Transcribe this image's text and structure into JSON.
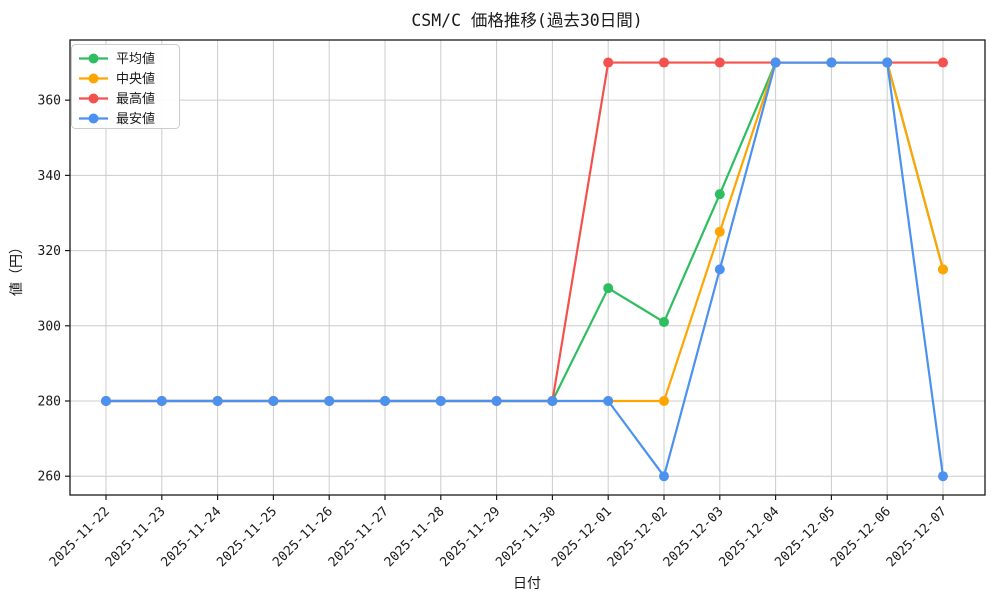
{
  "chart_data": {
    "type": "line",
    "title": "CSM/C 価格推移(過去30日間)",
    "xlabel": "日付",
    "ylabel": "値（円）",
    "x": [
      "2025-11-22",
      "2025-11-23",
      "2025-11-24",
      "2025-11-25",
      "2025-11-26",
      "2025-11-27",
      "2025-11-28",
      "2025-11-29",
      "2025-11-30",
      "2025-12-01",
      "2025-12-02",
      "2025-12-03",
      "2025-12-04",
      "2025-12-05",
      "2025-12-06",
      "2025-12-07"
    ],
    "series": [
      {
        "key": "mean",
        "name": "平均値",
        "color": "#2dbe60",
        "values": [
          280,
          280,
          280,
          280,
          280,
          280,
          280,
          280,
          280,
          310,
          301,
          335,
          370,
          370,
          370,
          315
        ]
      },
      {
        "key": "median",
        "name": "中央値",
        "color": "#ffa502",
        "values": [
          280,
          280,
          280,
          280,
          280,
          280,
          280,
          280,
          280,
          280,
          280,
          325,
          370,
          370,
          370,
          315
        ]
      },
      {
        "key": "max",
        "name": "最高値",
        "color": "#f4514d",
        "values": [
          280,
          280,
          280,
          280,
          280,
          280,
          280,
          280,
          280,
          370,
          370,
          370,
          370,
          370,
          370,
          370
        ]
      },
      {
        "key": "min",
        "name": "最安値",
        "color": "#4b92f0",
        "values": [
          280,
          280,
          280,
          280,
          280,
          280,
          280,
          280,
          280,
          280,
          260,
          315,
          370,
          370,
          370,
          260
        ]
      }
    ],
    "yticks": [
      260,
      280,
      300,
      320,
      340,
      360
    ],
    "ylim": [
      255,
      376
    ],
    "grid": true,
    "legend_position": "upper left",
    "grid_color": "#cccccc",
    "spine_color": "#1a1a1a",
    "background": "#ffffff"
  }
}
